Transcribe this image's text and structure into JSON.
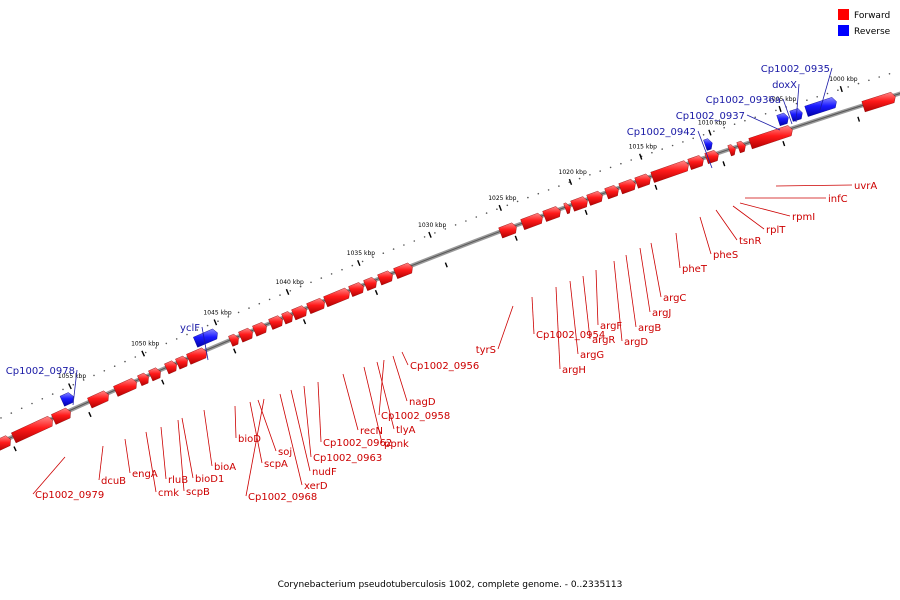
{
  "legend": [
    {
      "label": "Forward",
      "color": "#ff0000"
    },
    {
      "label": "Reverse",
      "color": "#0000ff"
    }
  ],
  "caption": "Corynebacterium pseudotuberculosis 1002, complete genome. - 0..2335113",
  "colors": {
    "forward": "#ff0000",
    "reverse": "#0000ff",
    "backbone": "#777777",
    "label_forward": "#cc0000",
    "label_reverse": "#1a1aa6"
  },
  "ticks": [
    "1000 kbp",
    "1005 kbp",
    "1010 kbp",
    "1015 kbp",
    "1020 kbp",
    "1025 kbp",
    "1030 kbp",
    "1035 kbp",
    "1040 kbp",
    "1045 kbp",
    "1050 kbp",
    "1055 kbp"
  ],
  "genes_forward": [
    "uvrA",
    "infC",
    "rpmI",
    "rplT",
    "tsnR",
    "pheS",
    "pheT",
    "argC",
    "argJ",
    "argB",
    "argD",
    "argF",
    "argR",
    "argG",
    "argH",
    "Cp1002_0954",
    "tyrS",
    "Cp1002_0956",
    "nagD",
    "Cp1002_0958",
    "tlyA",
    "ppnk",
    "recN",
    "Cp1002_0962",
    "Cp1002_0963",
    "nudF",
    "xerD",
    "Cp1002_0968",
    "scpA",
    "soj",
    "bioD",
    "bioA",
    "bioD1",
    "scpB",
    "rluB",
    "cmk",
    "engA",
    "dcuB",
    "Cp1002_0979"
  ],
  "genes_reverse": [
    "Cp1002_0935",
    "doxX",
    "Cp1002_0936a",
    "Cp1002_0937",
    "Cp1002_0942",
    "yclF",
    "Cp1002_0978"
  ]
}
